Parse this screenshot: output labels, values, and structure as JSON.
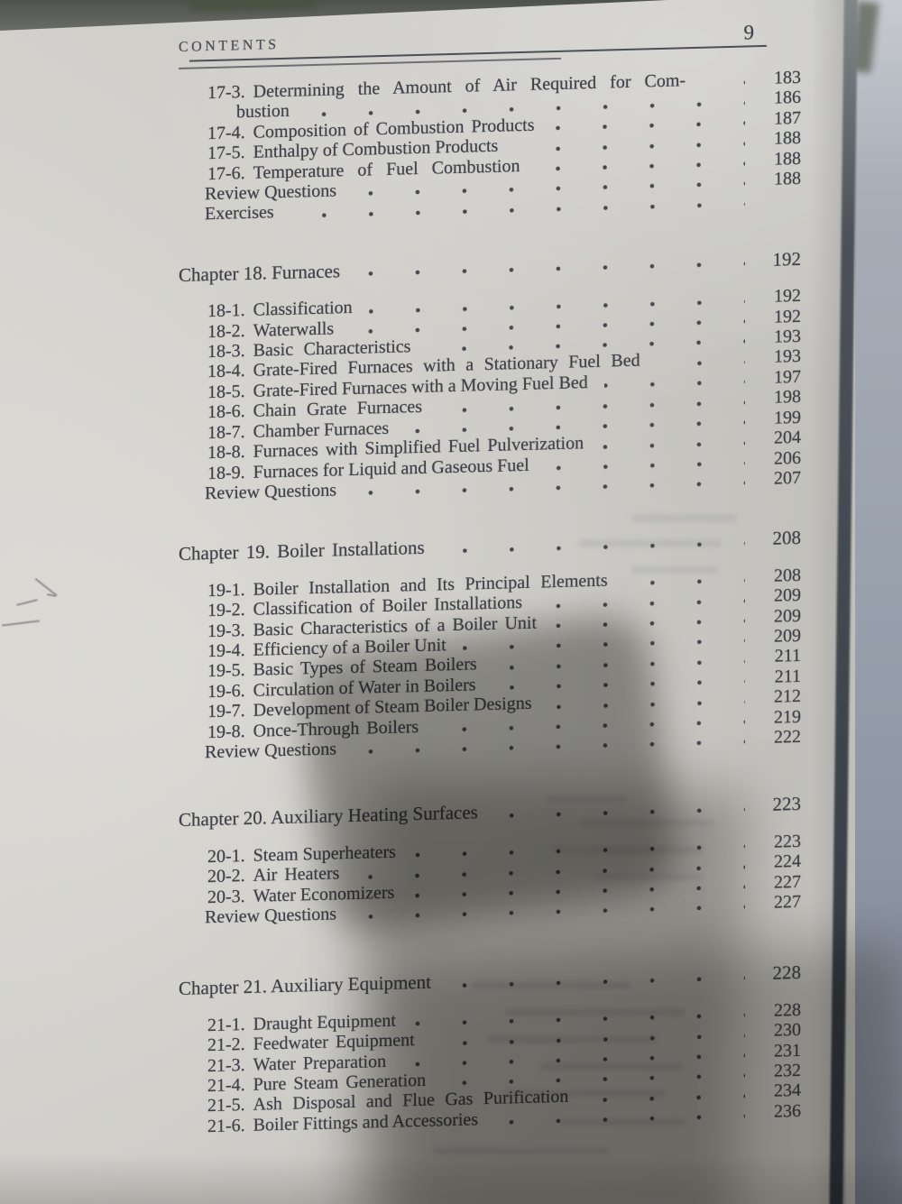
{
  "photo": {
    "page_number": "9",
    "header": "CONTENTS"
  },
  "toc": {
    "sections": [
      {
        "id": "s17",
        "rows": [
          {
            "kind": "entry",
            "label": "17-3.",
            "title": "Determining the Amount of Air Required for Com-",
            "page": "183",
            "j": 3
          },
          {
            "kind": "cont",
            "label": "",
            "title": "bustion",
            "page": "186",
            "j": 0
          },
          {
            "kind": "entry",
            "label": "17-4.",
            "title": "Composition of Combustion Products",
            "page": "187",
            "j": 1
          },
          {
            "kind": "entry",
            "label": "17-5.",
            "title": "Enthalpy of Combustion Products",
            "page": "188",
            "j": 0
          },
          {
            "kind": "entry",
            "label": "17-6.",
            "title": "Temperature of Fuel Combustion",
            "page": "188",
            "j": 3
          },
          {
            "kind": "plain",
            "label": "",
            "title": "Review Questions",
            "page": "188",
            "j": 0
          },
          {
            "kind": "plain",
            "label": "",
            "title": "Exercises",
            "page": "",
            "j": 0
          }
        ]
      },
      {
        "id": "s18",
        "rows": [
          {
            "kind": "chapter",
            "label": "",
            "title": "Chapter 18. Furnaces",
            "page": "192",
            "j": 0
          },
          {
            "kind": "entry",
            "label": "18-1.",
            "title": "Classification",
            "page": "192",
            "j": 0
          },
          {
            "kind": "entry",
            "label": "18-2.",
            "title": "Waterwalls",
            "page": "192",
            "j": 0
          },
          {
            "kind": "entry",
            "label": "18-3.",
            "title": "Basic Characteristics",
            "page": "193",
            "j": 2
          },
          {
            "kind": "entry",
            "label": "18-4.",
            "title": "Grate-Fired Furnaces with a Stationary Fuel Bed",
            "page": "193",
            "j": 2
          },
          {
            "kind": "entry",
            "label": "18-5.",
            "title": "Grate-Fired Furnaces with a Moving Fuel Bed",
            "page": "197",
            "j": 0
          },
          {
            "kind": "entry",
            "label": "18-6.",
            "title": "Chain Grate Furnaces",
            "page": "198",
            "j": 2
          },
          {
            "kind": "entry",
            "label": "18-7.",
            "title": "Chamber Furnaces",
            "page": "199",
            "j": 0
          },
          {
            "kind": "entry",
            "label": "18-8.",
            "title": "Furnaces with Simplified Fuel Pulverization",
            "page": "204",
            "j": 1
          },
          {
            "kind": "entry",
            "label": "18-9.",
            "title": "Furnaces for Liquid and Gaseous Fuel",
            "page": "206",
            "j": 0
          },
          {
            "kind": "plain",
            "label": "",
            "title": "Review Questions",
            "page": "207",
            "j": 0
          }
        ]
      },
      {
        "id": "s19",
        "rows": [
          {
            "kind": "chapter",
            "label": "",
            "title": "Chapter 19. Boiler Installations",
            "page": "208",
            "j": 1
          },
          {
            "kind": "entry",
            "label": "19-1.",
            "title": "Boiler Installation and Its Principal Elements",
            "page": "208",
            "j": 2
          },
          {
            "kind": "entry",
            "label": "19-2.",
            "title": "Classification of Boiler Installations",
            "page": "209",
            "j": 1
          },
          {
            "kind": "entry",
            "label": "19-3.",
            "title": "Basic Characteristics of a Boiler Unit",
            "page": "209",
            "j": 1
          },
          {
            "kind": "entry",
            "label": "19-4.",
            "title": "Efficiency of a Boiler Unit",
            "page": "209",
            "j": 0
          },
          {
            "kind": "entry",
            "label": "19-5.",
            "title": "Basic Types of Steam Boilers",
            "page": "211",
            "j": 1
          },
          {
            "kind": "entry",
            "label": "19-6.",
            "title": "Circulation of Water in Boilers",
            "page": "211",
            "j": 0
          },
          {
            "kind": "entry",
            "label": "19-7.",
            "title": "Development of Steam Boiler Designs",
            "page": "212",
            "j": 0
          },
          {
            "kind": "entry",
            "label": "19-8.",
            "title": "Once-Through Boilers",
            "page": "219",
            "j": 1
          },
          {
            "kind": "plain",
            "label": "",
            "title": "Review Questions",
            "page": "222",
            "j": 0
          }
        ]
      },
      {
        "id": "s20",
        "rows": [
          {
            "kind": "chapter",
            "label": "",
            "title": "Chapter 20. Auxiliary Heating Surfaces",
            "page": "223",
            "j": 0
          },
          {
            "kind": "entry",
            "label": "20-1.",
            "title": "Steam Superheaters",
            "page": "223",
            "j": 0
          },
          {
            "kind": "entry",
            "label": "20-2.",
            "title": "Air Heaters",
            "page": "224",
            "j": 1
          },
          {
            "kind": "entry",
            "label": "20-3.",
            "title": "Water Economizers",
            "page": "227",
            "j": 0
          },
          {
            "kind": "plain",
            "label": "",
            "title": "Review Questions",
            "page": "227",
            "j": 0
          }
        ]
      },
      {
        "id": "s21",
        "rows": [
          {
            "kind": "chapter",
            "label": "",
            "title": "Chapter 21. Auxiliary Equipment",
            "page": "228",
            "j": 0
          },
          {
            "kind": "entry",
            "label": "21-1.",
            "title": "Draught Equipment",
            "page": "228",
            "j": 0
          },
          {
            "kind": "entry",
            "label": "21-2.",
            "title": "Feedwater Equipment",
            "page": "230",
            "j": 1
          },
          {
            "kind": "entry",
            "label": "21-3.",
            "title": "Water Preparation",
            "page": "231",
            "j": 1
          },
          {
            "kind": "entry",
            "label": "21-4.",
            "title": "Pure Steam Generation",
            "page": "232",
            "j": 1
          },
          {
            "kind": "entry",
            "label": "21-5.",
            "title": "Ash Disposal and Flue Gas Purification",
            "page": "234",
            "j": 2
          },
          {
            "kind": "entry",
            "label": "21-6.",
            "title": "Boiler Fittings and Accessories",
            "page": "236",
            "j": 0
          }
        ]
      }
    ]
  }
}
